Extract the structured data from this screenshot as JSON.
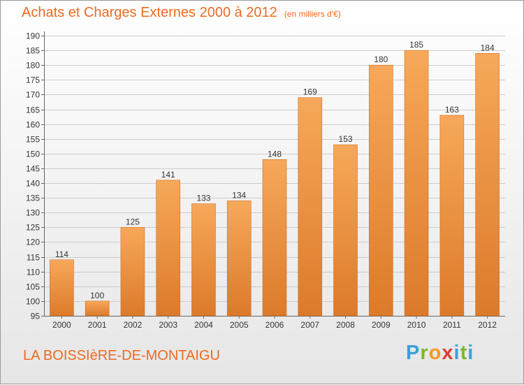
{
  "header": {
    "title": "Achats et Charges Externes 2000 à 2012",
    "subtitle": "(en milliers d'€)"
  },
  "footer": {
    "commune": "LA BOISSIèRE-DE-MONTAIGU",
    "logo": "Proxiti"
  },
  "colors": {
    "accent": "#ee6a1f",
    "bar_light": "#f7a85a",
    "bar_dark": "#dc7a2a",
    "grid": "#cccccc",
    "logo_letters": [
      "#3aa0d8",
      "#7cb829",
      "#f29a24",
      "#e03c31",
      "#3aa0d8",
      "#7cb829",
      "#3aa0d8"
    ]
  },
  "chart_data": {
    "type": "bar",
    "title": "Achats et Charges Externes 2000 à 2012",
    "subtitle": "(en milliers d'€)",
    "categories": [
      "2000",
      "2001",
      "2002",
      "2003",
      "2004",
      "2005",
      "2006",
      "2007",
      "2008",
      "2009",
      "2010",
      "2011",
      "2012"
    ],
    "values": [
      114,
      100,
      125,
      141,
      133,
      134,
      148,
      169,
      153,
      180,
      185,
      163,
      184
    ],
    "ylim": [
      95,
      190
    ],
    "yticks": [
      95,
      100,
      105,
      110,
      115,
      120,
      125,
      130,
      135,
      140,
      145,
      150,
      155,
      160,
      165,
      170,
      175,
      180,
      185,
      190
    ],
    "grid": true,
    "data_labels": true
  }
}
